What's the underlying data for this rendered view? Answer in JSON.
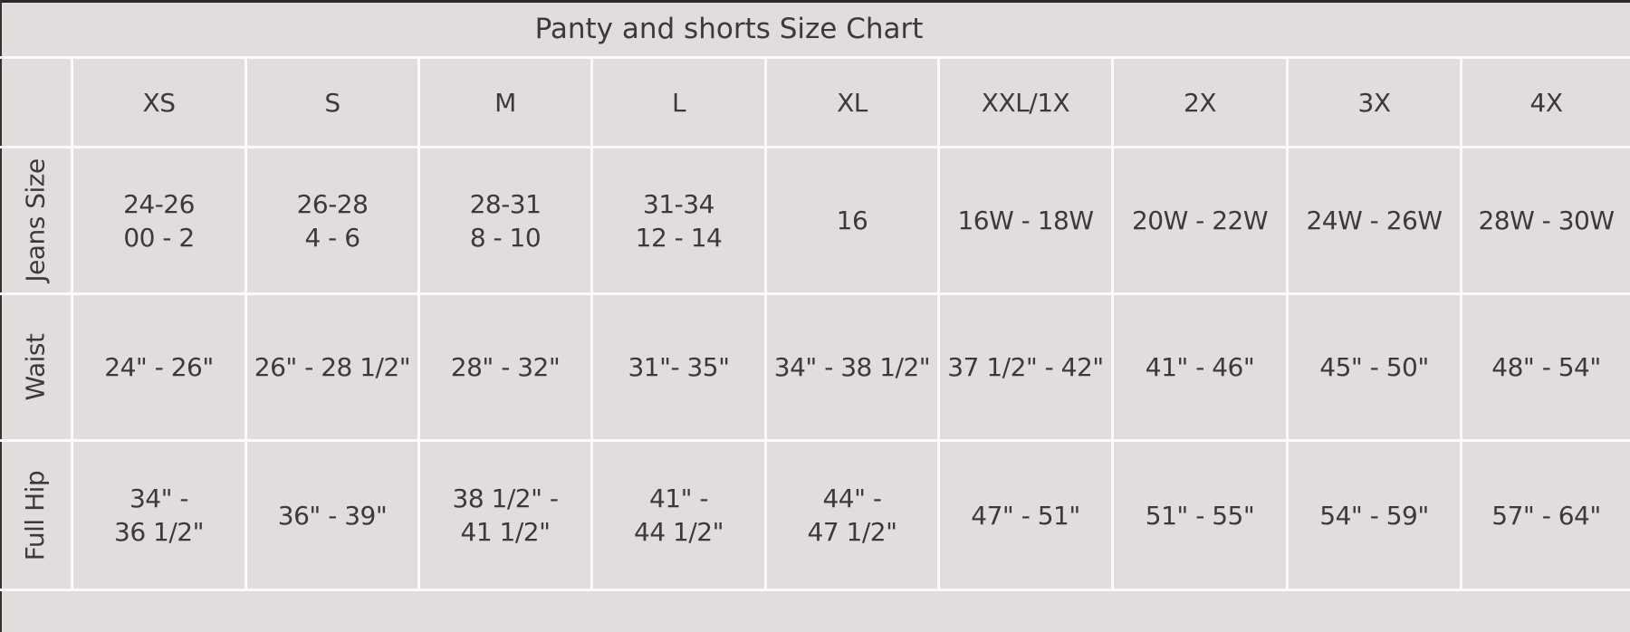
{
  "title": "Panty and shorts Size Chart",
  "columns": [
    "XS",
    "S",
    "M",
    "L",
    "XL",
    "XXL/1X",
    "2X",
    "3X",
    "4X"
  ],
  "rows": [
    {
      "label": "Jeans Size",
      "values": [
        "24-26\n00 - 2",
        "26-28\n4 - 6",
        "28-31\n8 - 10",
        "31-34\n12 - 14",
        "16",
        "16W - 18W",
        "20W - 22W",
        "24W - 26W",
        "28W - 30W"
      ]
    },
    {
      "label": "Waist",
      "values": [
        "24\" - 26\"",
        "26\" - 28 1/2\"",
        "28\" - 32\"",
        "31\"- 35\"",
        "34\" - 38 1/2\"",
        "37 1/2\" - 42\"",
        "41\" - 46\"",
        "45\" - 50\"",
        "48\" - 54\""
      ]
    },
    {
      "label": "Full Hip",
      "values": [
        "34\" -\n36 1/2\"",
        "36\" - 39\"",
        "38 1/2\" -\n41 1/2\"",
        "41\" -\n44 1/2\"",
        "44\" -\n47 1/2\"",
        "47\" - 51\"",
        "51\" - 55\"",
        "54\" - 59\"",
        "57\" - 64\""
      ]
    }
  ],
  "colors": {
    "background": "#e1dddd",
    "grid_lines": "#fbfbfb",
    "text": "#3b3a3a"
  }
}
